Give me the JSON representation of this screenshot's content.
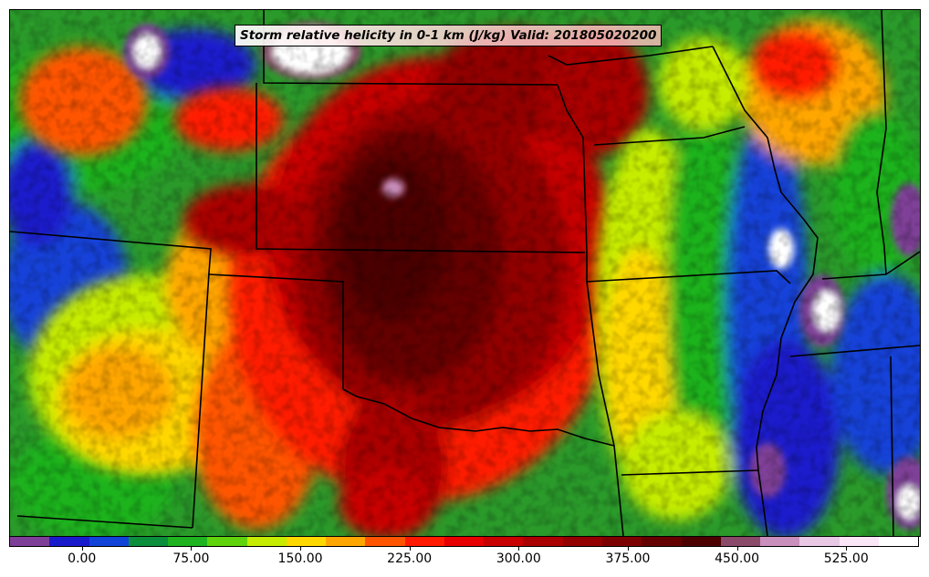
{
  "title": "Storm relative helicity in 0-1 km (J/kg) Valid: 201805020200",
  "colorbar": {
    "colors": [
      "#7f3f98",
      "#1a1acd",
      "#1243d9",
      "#0c8f3c",
      "#1fb31f",
      "#5fd40c",
      "#c6ec00",
      "#ffd800",
      "#ffa700",
      "#ff5500",
      "#ff1a00",
      "#e60000",
      "#c80000",
      "#aa0000",
      "#930000",
      "#7d0000",
      "#650000",
      "#4c0000",
      "#8a4a6a",
      "#c98fbd",
      "#e8c8e4",
      "#fbe6f8",
      "#ffffff"
    ],
    "tick_labels": [
      "0.00",
      "75.00",
      "150.00",
      "225.00",
      "300.00",
      "375.00",
      "450.00",
      "525.00"
    ],
    "tick_values": [
      0,
      75,
      150,
      225,
      300,
      375,
      450,
      525
    ],
    "min": -50,
    "max": 575
  },
  "map": {
    "background_color": "#2a8a2a",
    "boundary_color": "#000000"
  }
}
